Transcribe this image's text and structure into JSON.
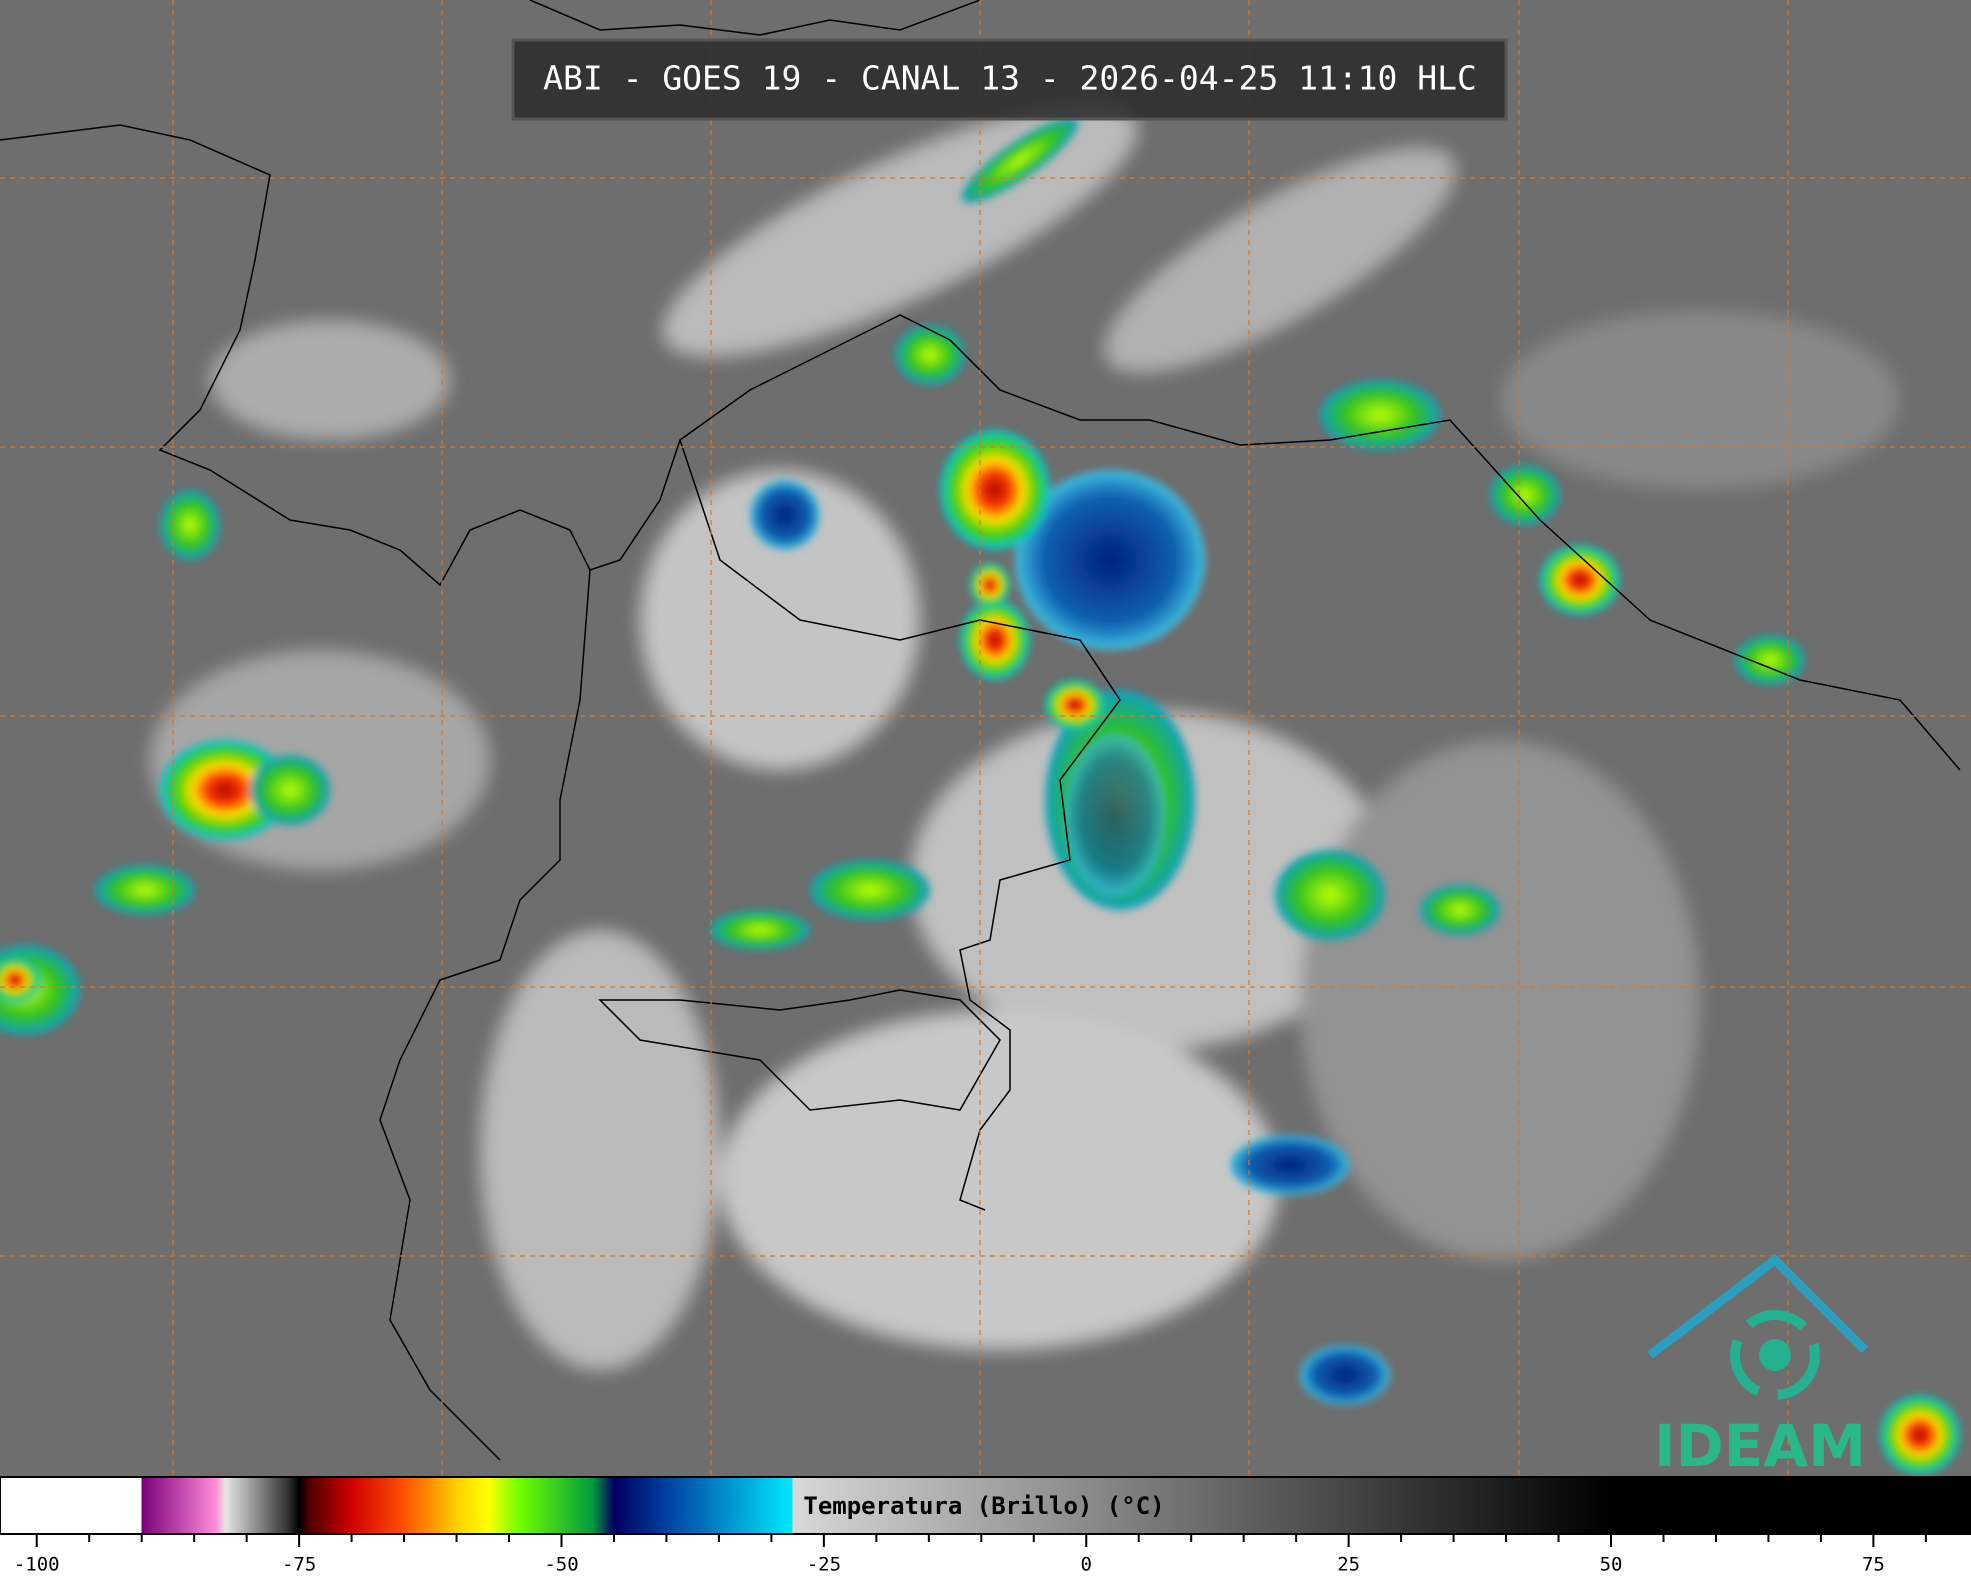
{
  "header": {
    "title": "ABI - GOES 19 - CANAL 13 - 2026-04-25 11:10 HLC"
  },
  "logo": {
    "text": "IDEAM"
  },
  "chart_data": {
    "type": "colorbar",
    "title": "Temperatura (Brillo) (°C)",
    "xlim": [
      -103.5,
      84.3
    ],
    "xticks": [
      -100,
      -75,
      -50,
      -25,
      0,
      25,
      50,
      75
    ],
    "minor_ticks": [
      -95,
      -90,
      -85,
      -80,
      -70,
      -65,
      -60,
      -55,
      -45,
      -40,
      -35,
      -30,
      -20,
      -15,
      -10,
      -5,
      5,
      10,
      15,
      20,
      30,
      35,
      40,
      45,
      55,
      60,
      65,
      70,
      80
    ],
    "color_stops": [
      {
        "value": -103.5,
        "color": "#ffffff"
      },
      {
        "value": -90,
        "color": "#ffffff"
      },
      {
        "value": -90,
        "color": "#7a007a"
      },
      {
        "value": -83,
        "color": "#ff88d8"
      },
      {
        "value": -82,
        "color": "#e6e6e6"
      },
      {
        "value": -76,
        "color": "#303030"
      },
      {
        "value": -75,
        "color": "#000000"
      },
      {
        "value": -74,
        "color": "#500000"
      },
      {
        "value": -70,
        "color": "#d00000"
      },
      {
        "value": -65,
        "color": "#ff5000"
      },
      {
        "value": -60,
        "color": "#ffd000"
      },
      {
        "value": -57,
        "color": "#ffff00"
      },
      {
        "value": -54,
        "color": "#70ff00"
      },
      {
        "value": -47,
        "color": "#009a40"
      },
      {
        "value": -45,
        "color": "#000060"
      },
      {
        "value": -40,
        "color": "#0040a0"
      },
      {
        "value": -28,
        "color": "#00e8ff"
      },
      {
        "value": -28,
        "color": "#d8d8d8"
      },
      {
        "value": 50,
        "color": "#000000"
      },
      {
        "value": 84.3,
        "color": "#000000"
      }
    ]
  }
}
